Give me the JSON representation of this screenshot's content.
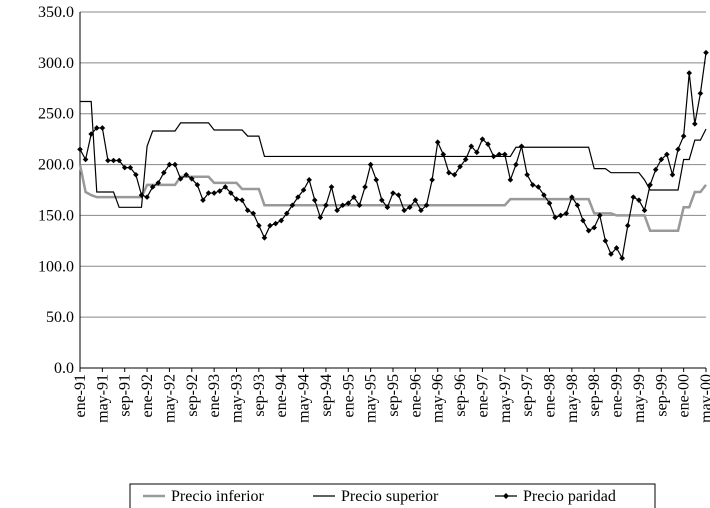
{
  "chart_data": {
    "type": "line",
    "categories": [
      "ene-91",
      null,
      null,
      null,
      "may-91",
      null,
      null,
      null,
      "sep-91",
      null,
      null,
      null,
      "ene-92",
      null,
      null,
      null,
      "may-92",
      null,
      null,
      null,
      "sep-92",
      null,
      null,
      null,
      "ene-93",
      null,
      null,
      null,
      "may-93",
      null,
      null,
      null,
      "sep-93",
      null,
      null,
      null,
      "ene-94",
      null,
      null,
      null,
      "may-94",
      null,
      null,
      null,
      "sep-94",
      null,
      null,
      null,
      "ene-95",
      null,
      null,
      null,
      "may-95",
      null,
      null,
      null,
      "sep-95",
      null,
      null,
      null,
      "ene-96",
      null,
      null,
      null,
      "may-96",
      null,
      null,
      null,
      "sep-96",
      null,
      null,
      null,
      "ene-97",
      null,
      null,
      null,
      "may-97",
      null,
      null,
      null,
      "sep-97",
      null,
      null,
      null,
      "ene-98",
      null,
      null,
      null,
      "may-98",
      null,
      null,
      null,
      "sep-98",
      null,
      null,
      null,
      "ene-99",
      null,
      null,
      null,
      "may-99",
      null,
      null,
      null,
      "sep-99",
      null,
      null,
      null,
      "ene-00",
      null,
      null,
      null,
      "may-00"
    ],
    "series": [
      {
        "name": "Precio inferior",
        "color": "#999999",
        "values": [
          200,
          173,
          170,
          168,
          168,
          168,
          168,
          168,
          168,
          168,
          168,
          168,
          180,
          180,
          180,
          180,
          180,
          180,
          188,
          188,
          188,
          188,
          188,
          188,
          182,
          182,
          182,
          182,
          182,
          176,
          176,
          176,
          176,
          160,
          160,
          160,
          160,
          160,
          160,
          160,
          160,
          160,
          160,
          160,
          160,
          160,
          160,
          160,
          160,
          160,
          160,
          160,
          160,
          160,
          160,
          160,
          160,
          160,
          160,
          160,
          160,
          160,
          160,
          160,
          160,
          160,
          160,
          160,
          160,
          160,
          160,
          160,
          160,
          160,
          160,
          160,
          160,
          166,
          166,
          166,
          166,
          166,
          166,
          166,
          166,
          166,
          166,
          166,
          166,
          166,
          166,
          166,
          152,
          152,
          152,
          152,
          150,
          150,
          150,
          150,
          150,
          150,
          135,
          135,
          135,
          135,
          135,
          135,
          158,
          158,
          173,
          173,
          180
        ]
      },
      {
        "name": "Precio superior",
        "color": "#000000",
        "values": [
          262,
          262,
          262,
          173,
          173,
          173,
          173,
          158,
          158,
          158,
          158,
          158,
          218,
          233,
          233,
          233,
          233,
          233,
          241,
          241,
          241,
          241,
          241,
          241,
          234,
          234,
          234,
          234,
          234,
          234,
          228,
          228,
          228,
          208,
          208,
          208,
          208,
          208,
          208,
          208,
          208,
          208,
          208,
          208,
          208,
          208,
          208,
          208,
          208,
          208,
          208,
          208,
          208,
          208,
          208,
          208,
          208,
          208,
          208,
          208,
          208,
          208,
          208,
          208,
          208,
          208,
          208,
          208,
          208,
          208,
          208,
          208,
          208,
          208,
          208,
          208,
          208,
          208,
          217,
          217,
          217,
          217,
          217,
          217,
          217,
          217,
          217,
          217,
          217,
          217,
          217,
          217,
          196,
          196,
          196,
          192,
          192,
          192,
          192,
          192,
          192,
          185,
          175,
          175,
          175,
          175,
          175,
          175,
          205,
          205,
          224,
          224,
          235
        ]
      },
      {
        "name": "Precio paridad",
        "color": "#000000",
        "values": [
          215,
          205,
          230,
          236,
          236,
          204,
          204,
          204,
          197,
          197,
          190,
          170,
          168,
          178,
          182,
          192,
          200,
          200,
          186,
          190,
          186,
          180,
          165,
          172,
          172,
          174,
          178,
          172,
          166,
          165,
          155,
          152,
          140,
          128,
          140,
          142,
          145,
          152,
          160,
          168,
          175,
          185,
          165,
          148,
          160,
          178,
          155,
          160,
          162,
          168,
          160,
          178,
          200,
          185,
          165,
          158,
          172,
          170,
          155,
          158,
          165,
          155,
          160,
          185,
          222,
          210,
          192,
          190,
          198,
          205,
          218,
          212,
          225,
          220,
          208,
          210,
          210,
          185,
          200,
          218,
          190,
          180,
          178,
          170,
          162,
          148,
          150,
          152,
          168,
          160,
          145,
          135,
          138,
          150,
          125,
          112,
          118,
          108,
          140,
          168,
          165,
          155,
          180,
          195,
          205,
          210,
          190,
          215,
          228,
          290,
          240,
          270,
          310
        ]
      }
    ],
    "ylim": [
      0,
      350
    ],
    "yticks": [
      {
        "value": 0,
        "label": "0.0"
      },
      {
        "value": 50,
        "label": "50.0"
      },
      {
        "value": 100,
        "label": "100.0"
      },
      {
        "value": 150,
        "label": "150.0"
      },
      {
        "value": 200,
        "label": "200.0"
      },
      {
        "value": 250,
        "label": "250.0"
      },
      {
        "value": 300,
        "label": "300.0"
      },
      {
        "value": 350,
        "label": "350.0"
      }
    ],
    "grid": true,
    "legend": "bottom"
  }
}
